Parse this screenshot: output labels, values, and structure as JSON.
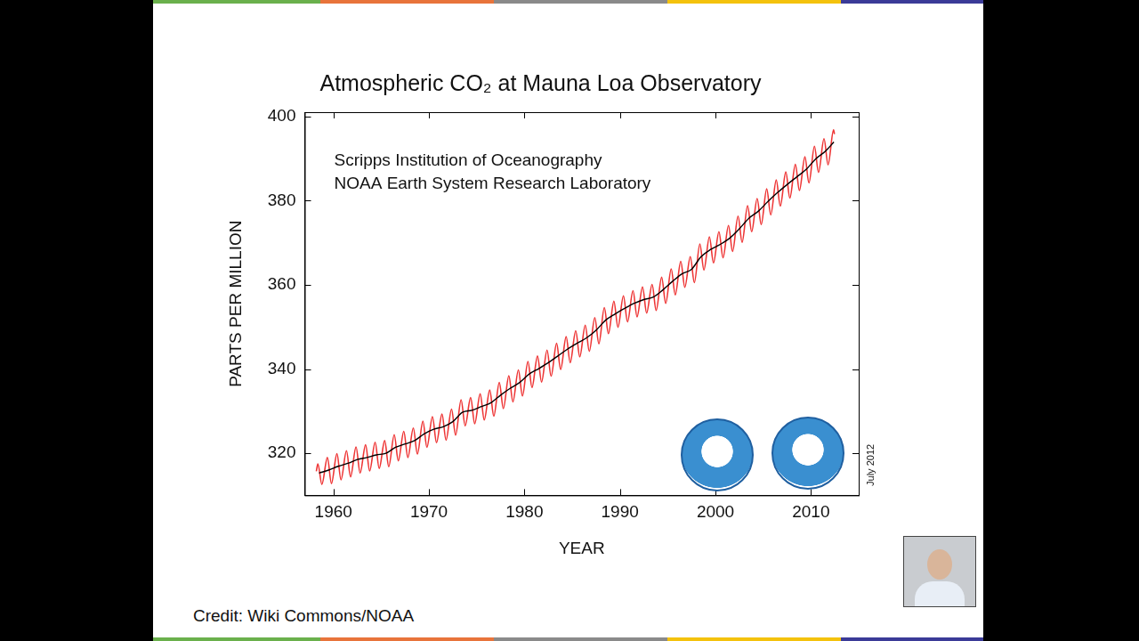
{
  "chart_data": {
    "type": "line",
    "title": "Atmospheric CO₂ at Mauna Loa Observatory",
    "x_label": "YEAR",
    "y_label": "PARTS PER MILLION",
    "annotations": [
      "Scripps Institution of Oceanography",
      "NOAA Earth System Research Laboratory"
    ],
    "stamp": "July 2012",
    "xlim": [
      1957,
      2015
    ],
    "xticks": [
      1960,
      1970,
      1980,
      1990,
      2000,
      2010
    ],
    "ylim": [
      310,
      401
    ],
    "yticks": [
      320,
      340,
      360,
      380,
      400
    ],
    "grid": false,
    "series": [
      {
        "color": "#ee3535",
        "x": [
          1958.21,
          1958.37,
          1958.79,
          1959.37,
          1959.79,
          1960.37,
          1960.79,
          1961.37,
          1961.79,
          1962.37,
          1962.79,
          1963.37,
          1963.79,
          1964.37,
          1964.79,
          1965.37,
          1965.79,
          1966.37,
          1966.79,
          1967.37,
          1967.79,
          1968.37,
          1968.79,
          1969.37,
          1969.79,
          1970.37,
          1970.79,
          1971.37,
          1971.79,
          1972.37,
          1972.79,
          1973.37,
          1973.79,
          1974.37,
          1974.79,
          1975.37,
          1975.79,
          1976.37,
          1976.79,
          1977.37,
          1977.79,
          1978.37,
          1978.79,
          1979.37,
          1979.79,
          1980.37,
          1980.79,
          1981.37,
          1981.79,
          1982.37,
          1982.79,
          1983.37,
          1983.79,
          1984.37,
          1984.79,
          1985.37,
          1985.79,
          1986.37,
          1986.79,
          1987.37,
          1987.79,
          1988.37,
          1988.79,
          1989.37,
          1989.79,
          1990.37,
          1990.79,
          1991.37,
          1991.79,
          1992.37,
          1992.79,
          1993.37,
          1993.79,
          1994.37,
          1994.79,
          1995.37,
          1995.79,
          1996.37,
          1996.79,
          1997.37,
          1997.79,
          1998.37,
          1998.79,
          1999.37,
          1999.79,
          2000.37,
          2000.79,
          2001.37,
          2001.79,
          2002.37,
          2002.79,
          2003.37,
          2003.79,
          2004.37,
          2004.79,
          2005.37,
          2005.79,
          2006.37,
          2006.79,
          2007.37,
          2007.79,
          2008.37,
          2008.79,
          2009.37,
          2009.79,
          2010.37,
          2010.79,
          2011.37,
          2011.79,
          2012.37,
          2012.46
        ],
        "values": [
          315.7,
          317.5,
          312.6,
          319.0,
          312.8,
          319.9,
          313.7,
          320.6,
          314.4,
          321.5,
          315.3,
          322.0,
          315.8,
          322.6,
          316.4,
          323.0,
          316.8,
          324.4,
          318.2,
          325.2,
          319.0,
          326.0,
          319.8,
          327.6,
          321.4,
          328.7,
          322.5,
          329.3,
          323.1,
          330.5,
          324.3,
          332.7,
          326.5,
          333.2,
          327.0,
          334.1,
          327.9,
          335.0,
          328.8,
          336.8,
          330.6,
          338.4,
          332.2,
          339.8,
          333.6,
          341.8,
          335.6,
          343.1,
          336.9,
          344.5,
          338.3,
          346.1,
          339.9,
          347.7,
          341.5,
          349.1,
          342.9,
          350.4,
          344.2,
          352.2,
          346.0,
          354.6,
          348.4,
          356.1,
          349.9,
          357.4,
          351.2,
          358.6,
          352.4,
          359.5,
          353.3,
          360.1,
          353.9,
          361.8,
          355.6,
          363.8,
          357.6,
          365.6,
          359.4,
          366.7,
          360.5,
          369.7,
          363.5,
          371.4,
          365.2,
          372.6,
          366.4,
          374.1,
          367.9,
          376.3,
          370.1,
          378.8,
          372.6,
          380.5,
          374.3,
          382.8,
          376.6,
          384.9,
          378.7,
          386.8,
          380.6,
          388.6,
          382.4,
          390.4,
          384.2,
          392.9,
          386.7,
          394.7,
          388.5,
          396.8,
          395.8
        ]
      },
      {
        "color": "#000000",
        "x": [
          1958.5,
          1959.5,
          1960.5,
          1961.5,
          1962.5,
          1963.5,
          1964.5,
          1965.5,
          1966.5,
          1967.5,
          1968.5,
          1969.5,
          1970.5,
          1971.5,
          1972.5,
          1973.5,
          1974.5,
          1975.5,
          1976.5,
          1977.5,
          1978.5,
          1979.5,
          1980.5,
          1981.5,
          1982.5,
          1983.5,
          1984.5,
          1985.5,
          1986.5,
          1987.5,
          1988.5,
          1989.5,
          1990.5,
          1991.5,
          1992.5,
          1993.5,
          1994.5,
          1995.5,
          1996.5,
          1997.5,
          1998.5,
          1999.5,
          2000.5,
          2001.5,
          2002.5,
          2003.5,
          2004.5,
          2005.5,
          2006.5,
          2007.5,
          2008.5,
          2009.5,
          2010.5,
          2011.5,
          2012.4
        ],
        "values": [
          315.3,
          316.0,
          316.9,
          317.6,
          318.5,
          319.0,
          319.6,
          320.0,
          321.4,
          322.2,
          323.0,
          324.6,
          325.7,
          326.3,
          327.5,
          329.7,
          330.2,
          331.1,
          332.0,
          333.8,
          335.4,
          336.8,
          338.8,
          340.1,
          341.5,
          343.1,
          344.7,
          346.1,
          347.4,
          349.2,
          351.6,
          353.1,
          354.4,
          355.6,
          356.5,
          357.1,
          358.8,
          360.8,
          362.6,
          363.7,
          366.7,
          368.4,
          369.6,
          371.1,
          373.3,
          375.8,
          377.5,
          379.8,
          381.9,
          383.8,
          385.6,
          387.4,
          389.9,
          391.7,
          393.9
        ]
      }
    ]
  },
  "credit": "Credit: Wiki Commons/NOAA"
}
